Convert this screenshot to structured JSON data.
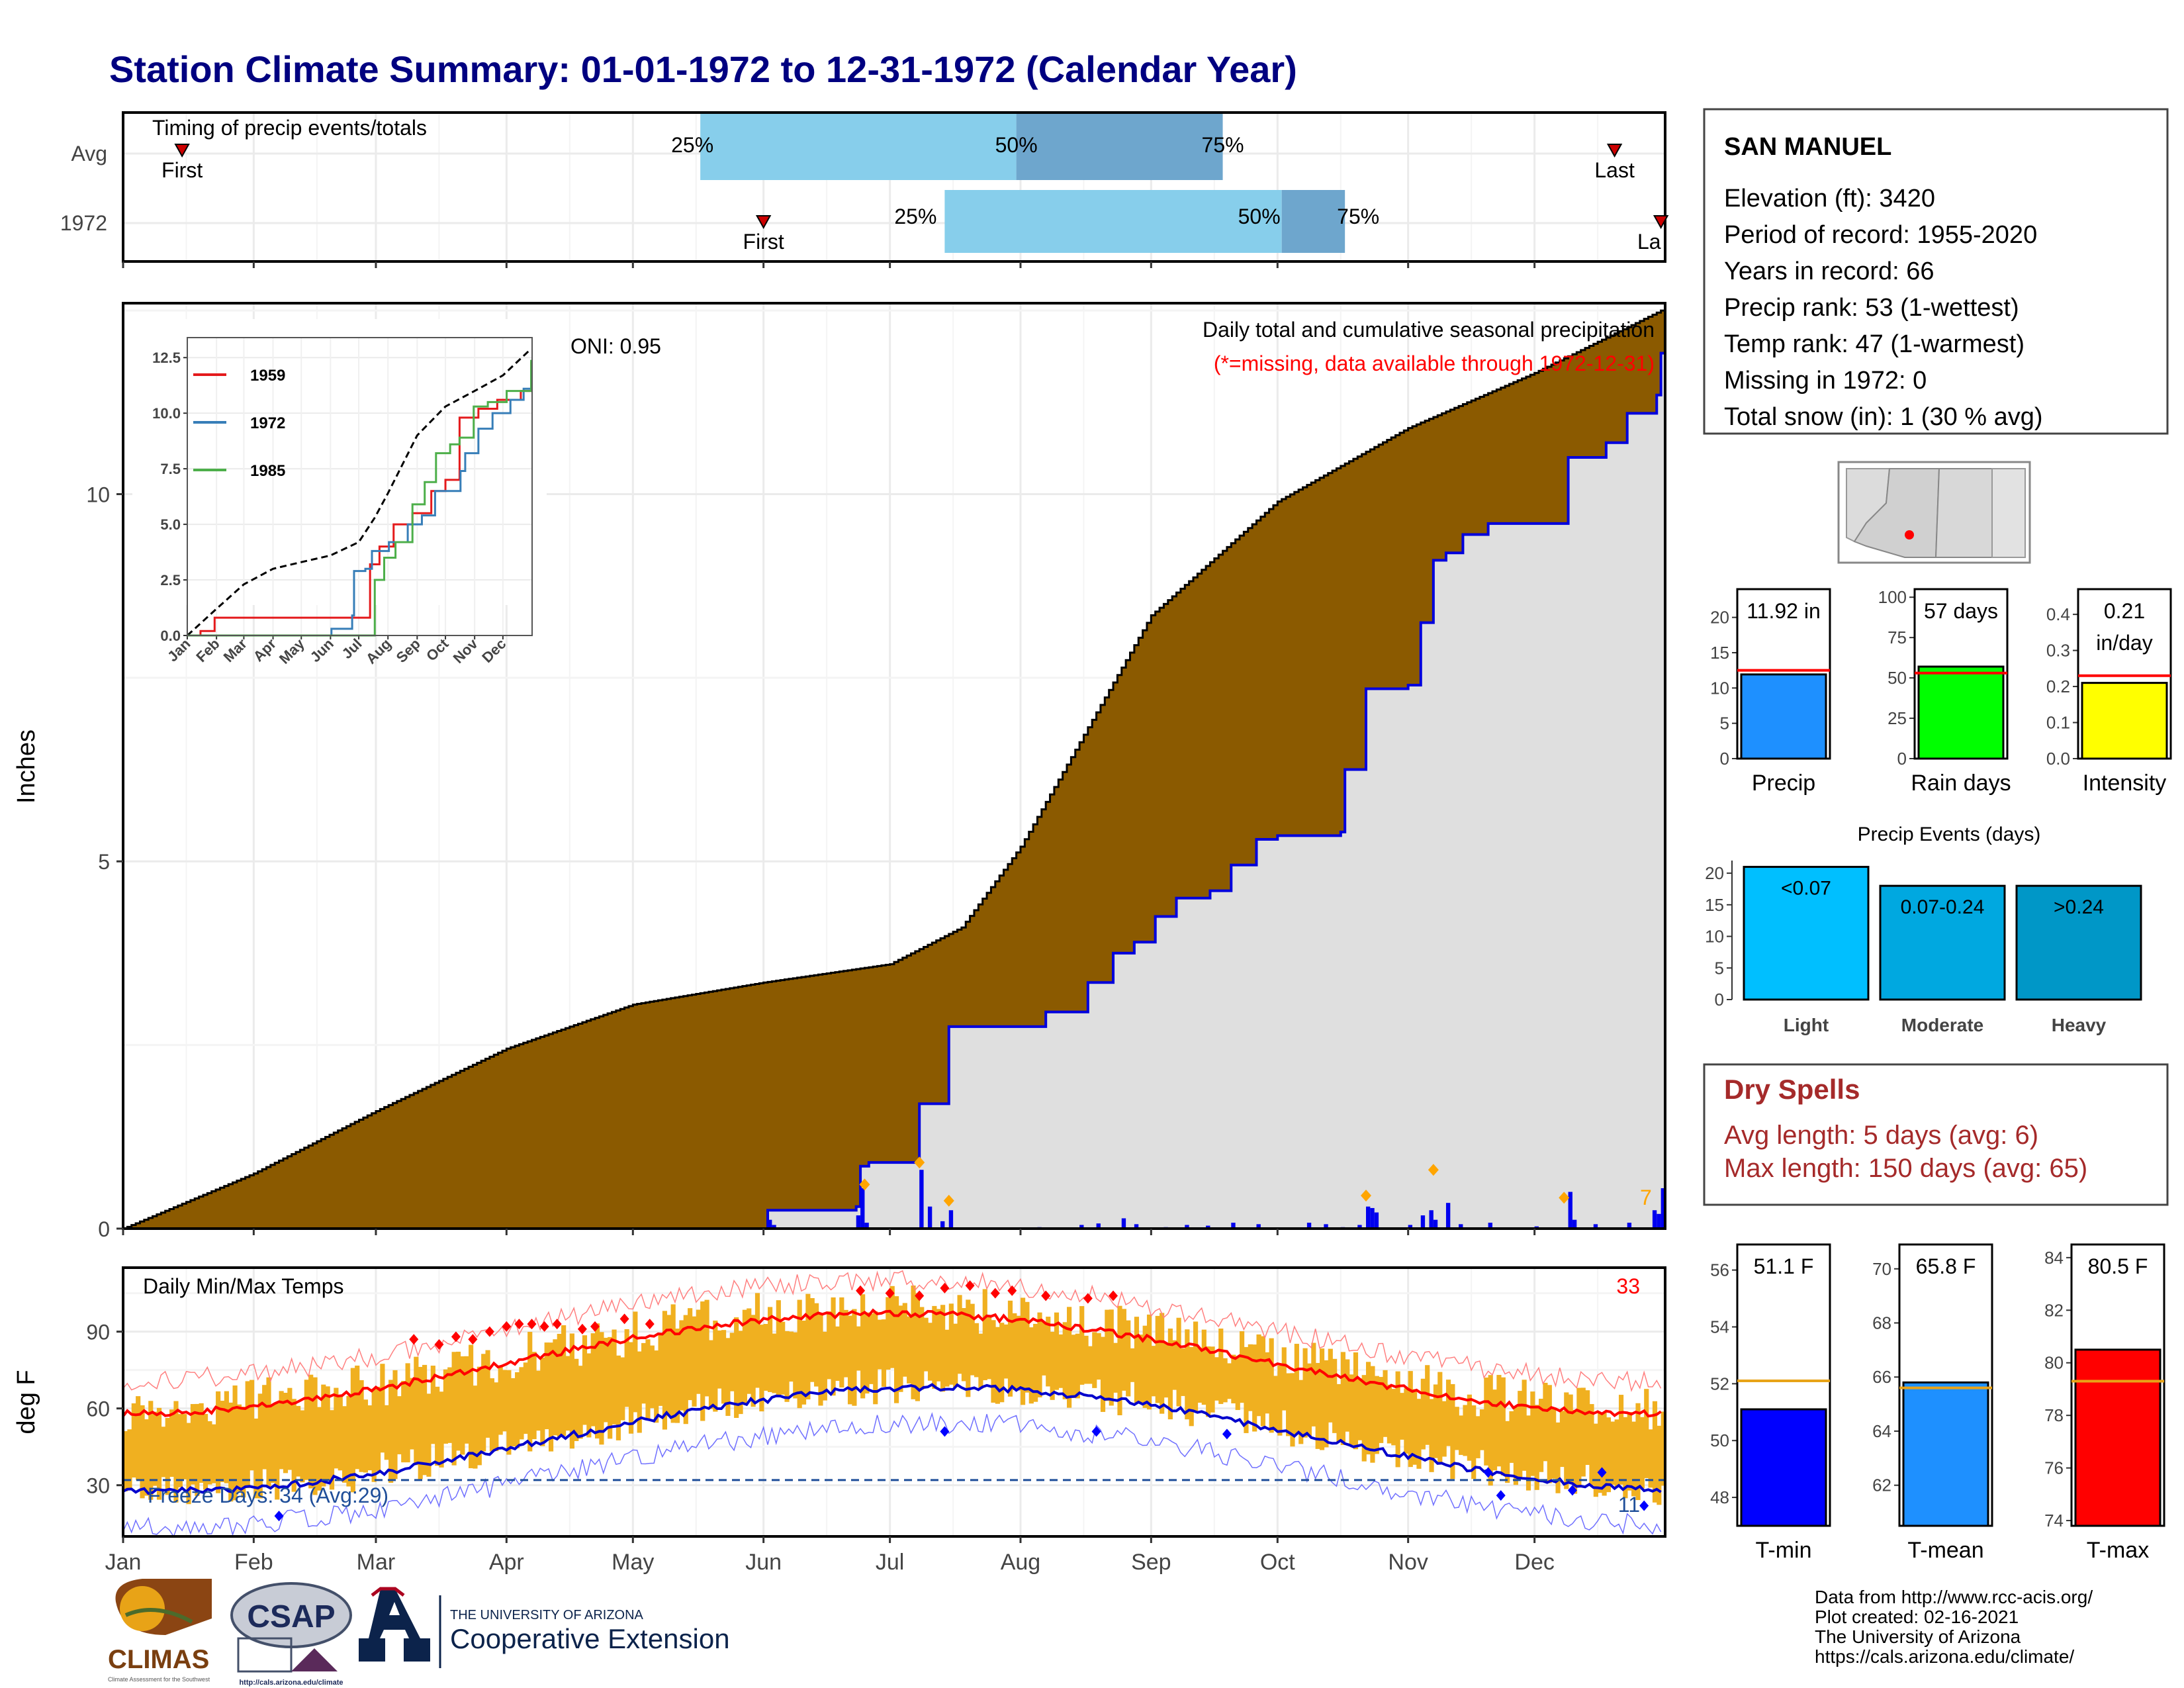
{
  "title": "Station Climate Summary: 01-01-1972 to 12-31-1972 (Calendar Year)",
  "months": [
    "Jan",
    "Feb",
    "Mar",
    "Apr",
    "May",
    "Jun",
    "Jul",
    "Aug",
    "Sep",
    "Oct",
    "Nov",
    "Dec"
  ],
  "timing": {
    "title": "Timing of precip events/totals",
    "rows": [
      {
        "label": "Avg",
        "first_doy": 15,
        "last_doy": 355,
        "p25_doy": 138,
        "p50_doy": 213,
        "p75_doy": 262,
        "first_label": "First",
        "last_label": "Last",
        "p25_label": "25%",
        "p50_label": "50%",
        "p75_label": "75%"
      },
      {
        "label": "1972",
        "first_doy": 153,
        "last_doy": 366,
        "p25_doy": 196,
        "p50_doy": 276,
        "p75_doy": 291,
        "first_label": "First",
        "last_label": "La",
        "p25_label": "25%",
        "p50_label": "50%",
        "p75_label": "75%"
      }
    ],
    "colors": {
      "band_light": "#87ceeb",
      "band_dark": "#6ea6cd",
      "marker": "#cc0000"
    }
  },
  "precip_panel": {
    "ylabel": "Inches",
    "title": "Daily total and cumulative seasonal precipitation",
    "subtitle": "(*=missing, data available through 1972-12-31)",
    "oni": "ONI: 0.95",
    "corner_value": "7",
    "ylim": [
      0,
      12.6
    ],
    "yticks": [
      0,
      5,
      10
    ],
    "colors": {
      "avg_fill": "#8b5a00",
      "year_fill": "#dfdfdf",
      "year_line": "#0000dd",
      "bar": "#0000ee",
      "extreme": "#ffa500"
    }
  },
  "inset": {
    "yticks": [
      "0.0",
      "2.5",
      "5.0",
      "7.5",
      "10.0",
      "12.5"
    ],
    "months": [
      "Jan",
      "Feb",
      "Mar",
      "Apr",
      "May",
      "Jun",
      "Jul",
      "Aug",
      "Sep",
      "Oct",
      "Nov",
      "Dec"
    ],
    "legend": [
      {
        "name": "1959",
        "color": "#e41a1c"
      },
      {
        "name": "1972",
        "color": "#377eb8"
      },
      {
        "name": "1985",
        "color": "#4daf4a"
      }
    ]
  },
  "temp_panel": {
    "ylabel": "deg F",
    "title": "Daily Min/Max Temps",
    "freeze_label": "Freeze Days: 34 (Avg:29)",
    "hot_count": "33",
    "cold_count": "11",
    "yticks": [
      "30",
      "60",
      "90"
    ],
    "ylim": [
      10,
      115
    ],
    "colors": {
      "bar": "#f0b020",
      "avg_max": "#ff0000",
      "avg_min": "#0000cc",
      "extreme_hot": "#ff0000",
      "extreme_cold": "#0000ff",
      "freeze_line": "#1f4e99"
    }
  },
  "station": {
    "name": "SAN MANUEL",
    "lines": [
      "Elevation (ft): 3420",
      "Period of record: 1955-2020",
      "Years in record: 66",
      "Precip rank: 53 (1-wettest)",
      "Temp rank: 47 (1-warmest)",
      "Missing in 1972: 0",
      "Total snow (in): 1 (30 % avg)"
    ]
  },
  "summary_bars": [
    {
      "label": "Precip",
      "value_text": "11.92 in",
      "value": 11.92,
      "avg": 12.5,
      "ymax": 24,
      "yticks": [
        "0",
        "5",
        "10",
        "15",
        "20"
      ],
      "color": "#1e90ff"
    },
    {
      "label": "Rain days",
      "value_text": "57 days",
      "value": 57,
      "avg": 53,
      "ymax": 105,
      "yticks": [
        "0",
        "25",
        "50",
        "75",
        "100"
      ],
      "color": "#00ff00"
    },
    {
      "label": "Intensity",
      "value_text": "0.21",
      "value_text2": "in/day",
      "value": 0.21,
      "avg": 0.23,
      "ymax": 0.47,
      "yticks": [
        "0.0",
        "0.1",
        "0.2",
        "0.3",
        "0.4"
      ],
      "color": "#ffff00"
    }
  ],
  "precip_events": {
    "title": "Precip Events (days)",
    "yticks": [
      "0",
      "5",
      "10",
      "15",
      "20"
    ],
    "ymax": 22,
    "bars": [
      {
        "category": "Light",
        "label": "<0.07",
        "value": 21,
        "color": "#00bfff"
      },
      {
        "category": "Moderate",
        "label": "0.07-0.24",
        "value": 18,
        "color": "#00a8e0"
      },
      {
        "category": "Heavy",
        "label": ">0.24",
        "value": 18,
        "color": "#0097c7"
      }
    ]
  },
  "dry_spells": {
    "title": "Dry Spells",
    "lines": [
      "Avg length: 5 days (avg: 6)",
      "Max length: 150 days (avg: 65)"
    ],
    "color": "#a52a2a"
  },
  "temp_bars": [
    {
      "label": "T-min",
      "value_text": "51.1 F",
      "value": 51.1,
      "avg": 52.1,
      "ymin": 47,
      "ymax": 56.9,
      "yticks": [
        "48",
        "50",
        "52",
        "54",
        "56"
      ],
      "color": "#0000ff"
    },
    {
      "label": "T-mean",
      "value_text": "65.8 F",
      "value": 65.8,
      "avg": 65.6,
      "ymin": 60.5,
      "ymax": 70.9,
      "yticks": [
        "62",
        "64",
        "66",
        "68",
        "70"
      ],
      "color": "#1e90ff"
    },
    {
      "label": "T-max",
      "value_text": "80.5 F",
      "value": 80.5,
      "avg": 79.3,
      "ymin": 73.8,
      "ymax": 84.5,
      "yticks": [
        "74",
        "76",
        "78",
        "80",
        "82",
        "84"
      ],
      "color": "#ff0000"
    }
  ],
  "footer": {
    "lines": [
      "Data from http://www.rcc-acis.org/",
      "Plot created: 02-16-2021",
      "The University of Arizona",
      "https://cals.arizona.edu/climate/"
    ],
    "logo_climas": "CLIMAS",
    "logo_climas_sub": "Climate Assessment for the Southwest",
    "logo_csap": "CSAP",
    "logo_csap_url": "http://cals.arizona.edu/climate",
    "ua_line1": "THE UNIVERSITY OF ARIZONA",
    "ua_line2": "Cooperative Extension"
  }
}
